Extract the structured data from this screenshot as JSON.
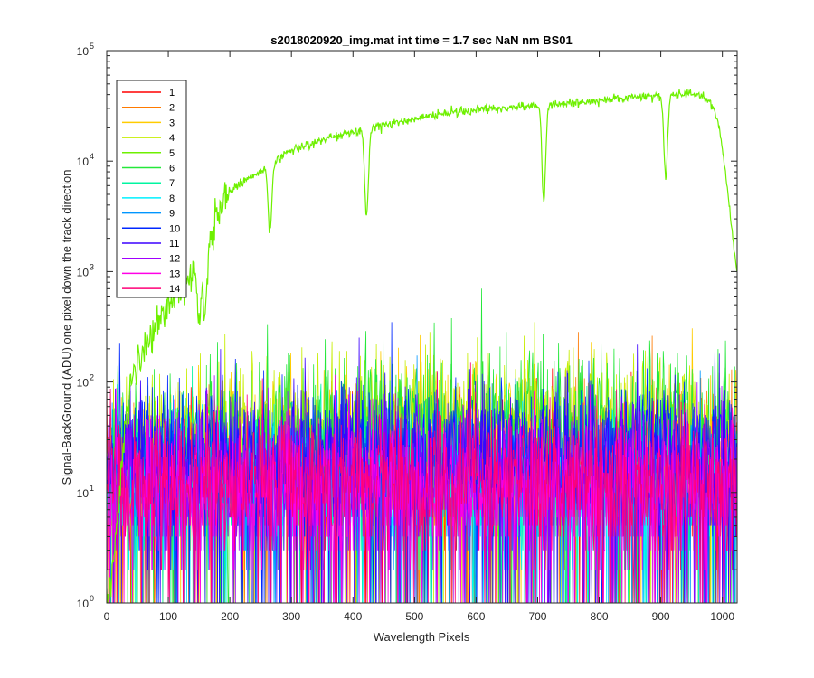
{
  "chart_data": {
    "type": "line",
    "title": "s2018020920_img.mat int time = 1.7 sec  NaN nm BS01",
    "xlabel": "Wavelength Pixels",
    "ylabel": "Signal-BackGround (ADU) one pixel down the track direction",
    "xlim": [
      0,
      1024
    ],
    "ylim": [
      1,
      100000
    ],
    "yscale": "log",
    "xticks": [
      "0",
      "100",
      "200",
      "300",
      "400",
      "500",
      "600",
      "700",
      "800",
      "900",
      "1000"
    ],
    "yticks": [
      {
        "base": "10",
        "exp": "0"
      },
      {
        "base": "10",
        "exp": "1"
      },
      {
        "base": "10",
        "exp": "2"
      },
      {
        "base": "10",
        "exp": "3"
      },
      {
        "base": "10",
        "exp": "4"
      },
      {
        "base": "10",
        "exp": "5"
      }
    ],
    "grid": false,
    "legend_position": "top-left",
    "main_series": {
      "name": "5",
      "x": [
        0,
        10,
        20,
        30,
        40,
        60,
        80,
        100,
        120,
        140,
        160,
        170,
        180,
        200,
        220,
        250,
        280,
        300,
        330,
        360,
        400,
        420,
        450,
        500,
        550,
        600,
        650,
        700,
        750,
        800,
        850,
        900,
        940,
        960,
        975,
        985,
        995,
        1005,
        1015,
        1024
      ],
      "values": [
        1,
        2,
        10,
        40,
        100,
        190,
        320,
        500,
        700,
        950,
        1300,
        1900,
        3500,
        5200,
        6500,
        8000,
        10500,
        12500,
        14500,
        16200,
        18200,
        19200,
        21000,
        24000,
        27000,
        29000,
        30500,
        31500,
        33500,
        35500,
        37500,
        39000,
        40000,
        39500,
        36000,
        30000,
        20000,
        8000,
        2500,
        900
      ],
      "dips": [
        {
          "x": 150,
          "depth": 0.5
        },
        {
          "x": 160,
          "depth": 0.45
        },
        {
          "x": 265,
          "depth": 0.6
        },
        {
          "x": 422,
          "depth": 0.78
        },
        {
          "x": 710,
          "depth": 0.85
        },
        {
          "x": 908,
          "depth": 0.75
        }
      ]
    },
    "noise_series": [
      {
        "name": "1",
        "color": "#ff0000",
        "base": [
          [
            0,
            14
          ],
          [
            1024,
            14
          ]
        ]
      },
      {
        "name": "2",
        "color": "#ff7a00",
        "base": [
          [
            0,
            15
          ],
          [
            1024,
            15
          ]
        ]
      },
      {
        "name": "3",
        "color": "#ffcc00",
        "base": [
          [
            0,
            18
          ],
          [
            300,
            28
          ],
          [
            600,
            35
          ],
          [
            900,
            30
          ],
          [
            1024,
            22
          ]
        ]
      },
      {
        "name": "4",
        "color": "#c6ee00",
        "base": [
          [
            0,
            20
          ],
          [
            300,
            38
          ],
          [
            600,
            50
          ],
          [
            900,
            42
          ],
          [
            1024,
            28
          ]
        ]
      },
      {
        "name": "6",
        "color": "#24e83a",
        "base": [
          [
            0,
            22
          ],
          [
            300,
            40
          ],
          [
            600,
            55
          ],
          [
            900,
            50
          ],
          [
            1024,
            30
          ]
        ]
      },
      {
        "name": "7",
        "color": "#00f5a0",
        "base": [
          [
            0,
            12
          ],
          [
            1024,
            12
          ]
        ]
      },
      {
        "name": "8",
        "color": "#00f0ff",
        "base": [
          [
            0,
            11
          ],
          [
            1024,
            11
          ]
        ]
      },
      {
        "name": "9",
        "color": "#0096ff",
        "base": [
          [
            0,
            13
          ],
          [
            1024,
            13
          ]
        ]
      },
      {
        "name": "10",
        "color": "#0028ff",
        "base": [
          [
            0,
            22
          ],
          [
            300,
            24
          ],
          [
            600,
            26
          ],
          [
            1024,
            22
          ]
        ]
      },
      {
        "name": "11",
        "color": "#3c00ff",
        "base": [
          [
            0,
            18
          ],
          [
            600,
            20
          ],
          [
            1024,
            18
          ]
        ]
      },
      {
        "name": "12",
        "color": "#a000ff",
        "base": [
          [
            0,
            12
          ],
          [
            1024,
            12
          ]
        ]
      },
      {
        "name": "13",
        "color": "#ff00e6",
        "base": [
          [
            0,
            11
          ],
          [
            1024,
            11
          ]
        ]
      },
      {
        "name": "14",
        "color": "#ff0078",
        "base": [
          [
            0,
            12
          ],
          [
            1024,
            12
          ]
        ]
      }
    ],
    "legend": [
      {
        "label": "1",
        "color": "#ff0000"
      },
      {
        "label": "2",
        "color": "#ff7a00"
      },
      {
        "label": "3",
        "color": "#ffcc00"
      },
      {
        "label": "4",
        "color": "#c6ee00"
      },
      {
        "label": "5",
        "color": "#6ef000"
      },
      {
        "label": "6",
        "color": "#24e83a"
      },
      {
        "label": "7",
        "color": "#00f5a0"
      },
      {
        "label": "8",
        "color": "#00f0ff"
      },
      {
        "label": "9",
        "color": "#0096ff"
      },
      {
        "label": "10",
        "color": "#0028ff"
      },
      {
        "label": "11",
        "color": "#3c00ff"
      },
      {
        "label": "12",
        "color": "#a000ff"
      },
      {
        "label": "13",
        "color": "#ff00e6"
      },
      {
        "label": "14",
        "color": "#ff0078"
      }
    ]
  }
}
